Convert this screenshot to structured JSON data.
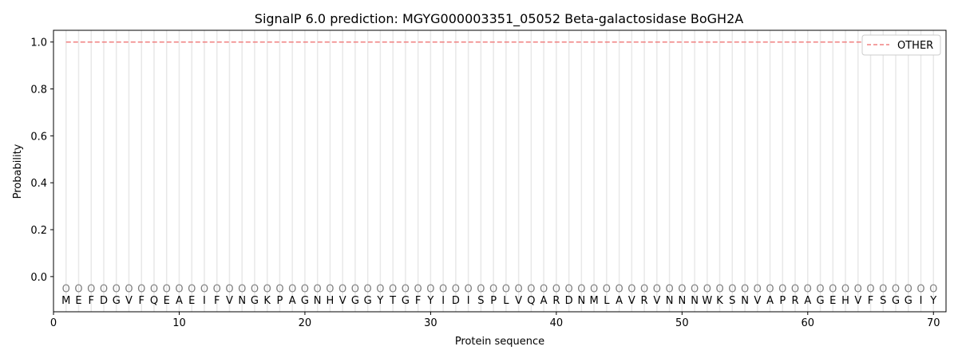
{
  "chart_data": {
    "type": "line",
    "title": "SignalP 6.0 prediction: MGYG000003351_05052 Beta-galactosidase BoGH2A",
    "xlabel": "Protein sequence",
    "ylabel": "Probability",
    "xlim": [
      0,
      71
    ],
    "ylim": [
      -0.15,
      1.05
    ],
    "xticks": [
      0,
      10,
      20,
      30,
      40,
      50,
      60,
      70
    ],
    "yticks": [
      0.0,
      0.2,
      0.4,
      0.6,
      0.8,
      1.0
    ],
    "ytick_labels": [
      "0.0",
      "0.2",
      "0.4",
      "0.6",
      "0.8",
      "1.0"
    ],
    "grid": "vertical lines at each residue",
    "legend_position": "top-right",
    "sequence": "MEFDGVFQEAEIFVNGKPAGNHVGGYTGFYIDISPLVQARDNMLAVRVNNNWKSNVAPRAGEHVFSGGIY",
    "region_label": "O",
    "series": [
      {
        "name": "OTHER",
        "color": "#f08080",
        "style": "dashed",
        "x_range": [
          1,
          70
        ],
        "value": 1.0
      }
    ]
  }
}
